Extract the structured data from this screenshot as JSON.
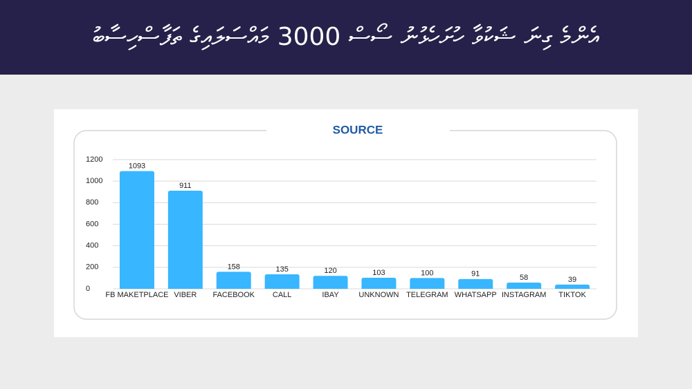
{
  "header": {
    "title": "އެންމެ ގިނަ ޝަކުވާ ހުށަހެޅުނު ސޯސް 3000 މައްސަލައިގެ ތަފާސްހިސާބު"
  },
  "chart_data": {
    "type": "bar",
    "title": "SOURCE",
    "categories": [
      "FB MAKETPLACE",
      "VIBER",
      "FACEBOOK",
      "CALL",
      "IBAY",
      "UNKNOWN",
      "TELEGRAM",
      "WHATSAPP",
      "INSTAGRAM",
      "TIKTOK"
    ],
    "values": [
      1093,
      911,
      158,
      135,
      120,
      103,
      100,
      91,
      58,
      39
    ],
    "color": "#38b6ff",
    "ylim": [
      0,
      1200
    ],
    "yticks": [
      0,
      200,
      400,
      600,
      800,
      1000,
      1200
    ],
    "grid": true
  }
}
